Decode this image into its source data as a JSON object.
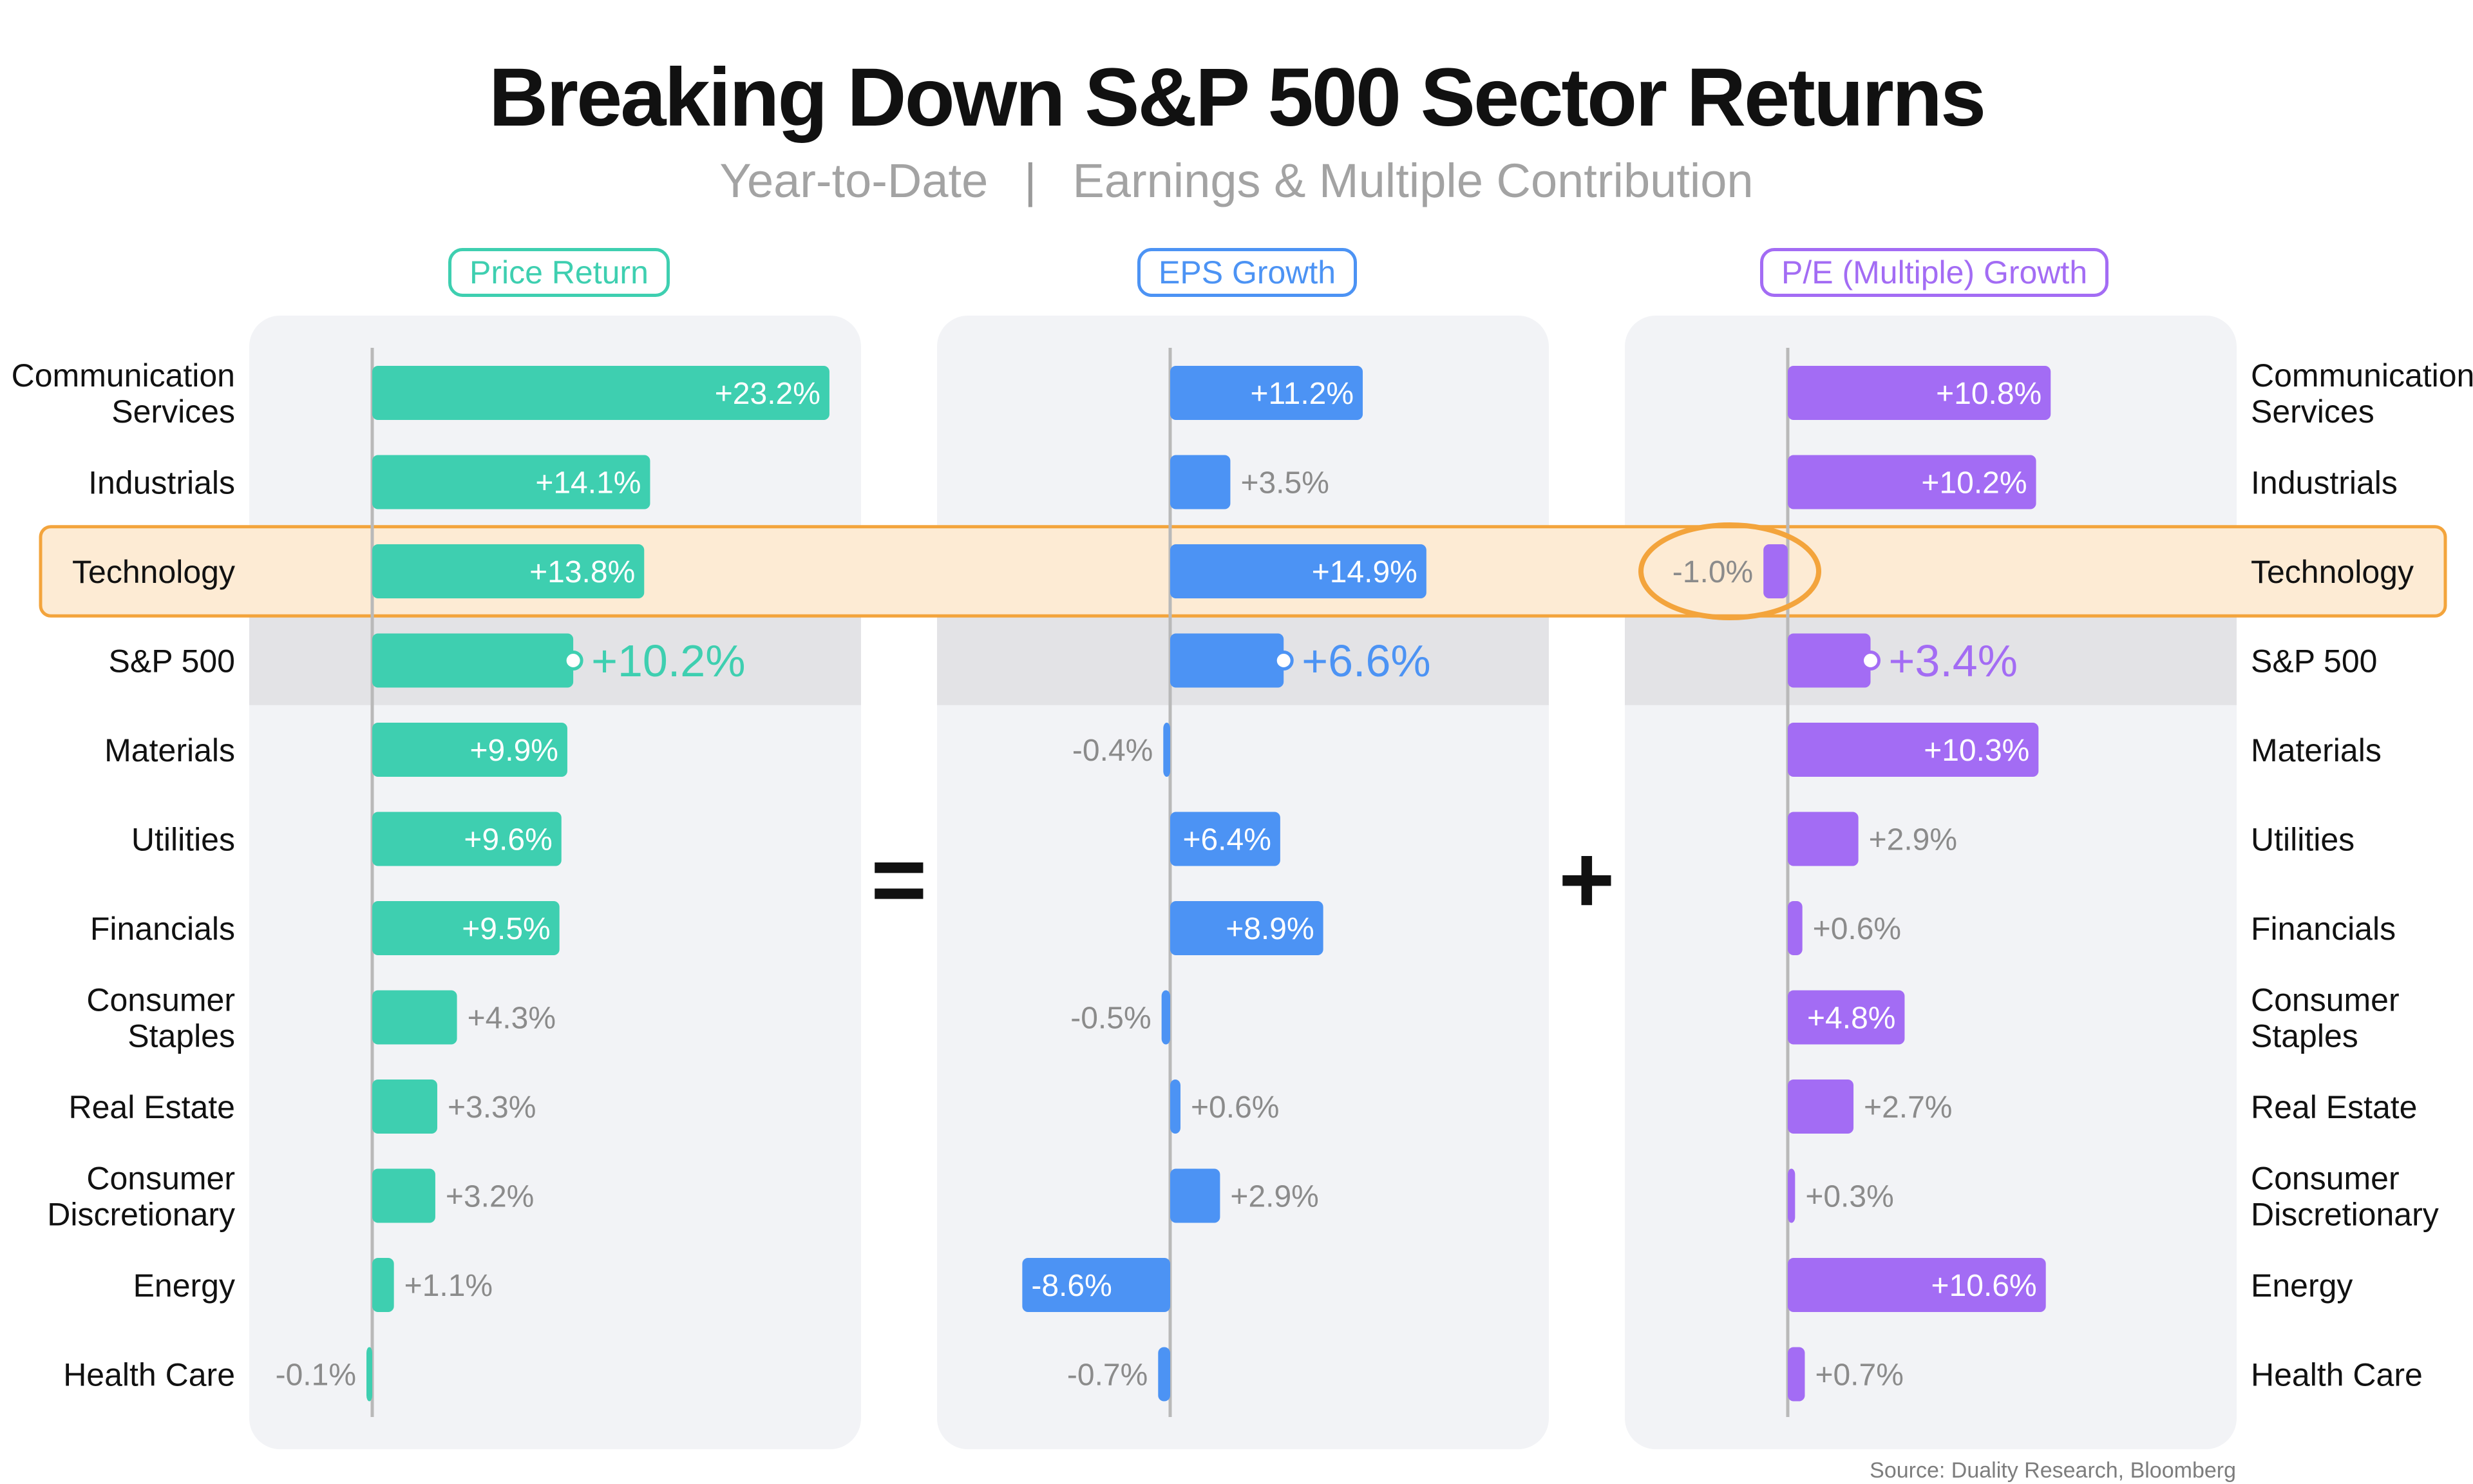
{
  "title": "Breaking Down S&P 500 Sector Returns",
  "subtitle_left": "Year-to-Date",
  "subtitle_right": "Earnings & Multiple Contribution",
  "operators": {
    "equals": "=",
    "plus": "+"
  },
  "source": "Source: Duality Research, Bloomberg",
  "highlighted_row": "Technology",
  "benchmark_row": "S&P 500",
  "colors": {
    "price_return": "#3ecfb0",
    "eps_growth": "#4c93f4",
    "pe_growth": "#a36cf4",
    "panel_background": "#f2f3f6",
    "benchmark_band": "#e3e3e6",
    "highlight_fill": "#fdebd4",
    "highlight_stroke": "#f3a43c"
  },
  "chart_data": {
    "type": "bar",
    "orientation": "horizontal",
    "categories": [
      "Communication\nServices",
      "Industrials",
      "Technology",
      "S&P 500",
      "Materials",
      "Utilities",
      "Financials",
      "Consumer\nStaples",
      "Real Estate",
      "Consumer\nDiscretionary",
      "Energy",
      "Health Care"
    ],
    "series": [
      {
        "name": "Price Return",
        "values": [
          23.2,
          14.1,
          13.8,
          10.2,
          9.9,
          9.6,
          9.5,
          4.3,
          3.3,
          3.2,
          1.1,
          -0.1
        ],
        "labels": [
          "+23.2%",
          "+14.1%",
          "+13.8%",
          "+10.2%",
          "+9.9%",
          "+9.6%",
          "+9.5%",
          "+4.3%",
          "+3.3%",
          "+3.2%",
          "+1.1%",
          "-0.1%"
        ]
      },
      {
        "name": "EPS Growth",
        "values": [
          11.2,
          3.5,
          14.9,
          6.6,
          -0.4,
          6.4,
          8.9,
          -0.5,
          0.6,
          2.9,
          -8.6,
          -0.7
        ],
        "labels": [
          "+11.2%",
          "+3.5%",
          "+14.9%",
          "+6.6%",
          "-0.4%",
          "+6.4%",
          "+8.9%",
          "-0.5%",
          "+0.6%",
          "+2.9%",
          "-8.6%",
          "-0.7%"
        ]
      },
      {
        "name": "P/E (Multiple) Growth",
        "values": [
          10.8,
          10.2,
          -1.0,
          3.4,
          10.3,
          2.9,
          0.6,
          4.8,
          2.7,
          0.3,
          10.6,
          0.7
        ],
        "labels": [
          "+10.8%",
          "+10.2%",
          "-1.0%",
          "+3.4%",
          "+10.3%",
          "+2.9%",
          "+0.6%",
          "+4.8%",
          "+2.7%",
          "+0.3%",
          "+10.6%",
          "+0.7%"
        ]
      }
    ]
  }
}
